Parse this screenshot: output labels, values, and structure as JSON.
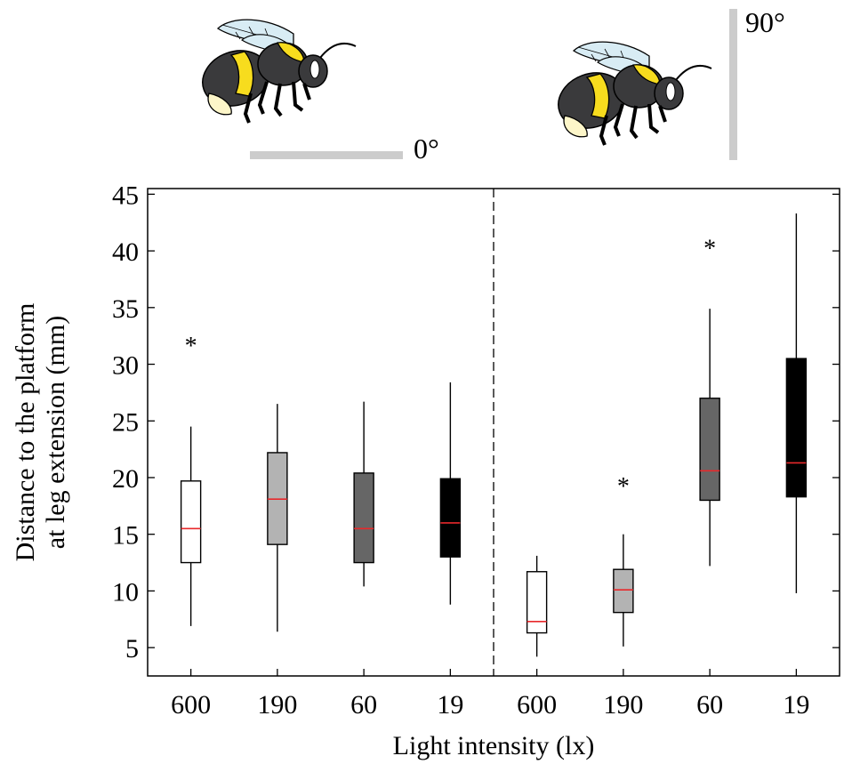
{
  "chart_data": {
    "type": "box",
    "xlabel": "Light intensity (lx)",
    "ylabel_line1": "Distance to the platform",
    "ylabel_line2": "at leg extension (mm)",
    "ylim": [
      2.5,
      45.5
    ],
    "yticks": [
      5,
      10,
      15,
      20,
      25,
      30,
      35,
      40,
      45
    ],
    "groups": [
      {
        "angle_label": "0°",
        "boxes": [
          {
            "category": "600",
            "whisker_low": 6.9,
            "q1": 12.5,
            "median": 15.5,
            "q3": 19.7,
            "whisker_high": 24.5,
            "outliers": [
              32.0
            ],
            "fill": "#ffffff"
          },
          {
            "category": "190",
            "whisker_low": 6.4,
            "q1": 14.1,
            "median": 18.1,
            "q3": 22.2,
            "whisker_high": 26.5,
            "outliers": [],
            "fill": "#b3b3b3"
          },
          {
            "category": "60",
            "whisker_low": 10.4,
            "q1": 12.5,
            "median": 15.5,
            "q3": 20.4,
            "whisker_high": 26.7,
            "outliers": [],
            "fill": "#666666"
          },
          {
            "category": "19",
            "whisker_low": 8.8,
            "q1": 13.0,
            "median": 16.0,
            "q3": 19.9,
            "whisker_high": 28.4,
            "outliers": [],
            "fill": "#000000"
          }
        ]
      },
      {
        "angle_label": "90°",
        "boxes": [
          {
            "category": "600",
            "whisker_low": 4.2,
            "q1": 6.3,
            "median": 7.3,
            "q3": 11.7,
            "whisker_high": 13.1,
            "outliers": [],
            "fill": "#ffffff"
          },
          {
            "category": "190",
            "whisker_low": 5.1,
            "q1": 8.1,
            "median": 10.1,
            "q3": 11.9,
            "whisker_high": 15.0,
            "outliers": [
              19.6
            ],
            "fill": "#b3b3b3"
          },
          {
            "category": "60",
            "whisker_low": 12.2,
            "q1": 18.0,
            "median": 20.6,
            "q3": 27.0,
            "whisker_high": 34.9,
            "outliers": [
              40.6
            ],
            "fill": "#666666"
          },
          {
            "category": "19",
            "whisker_low": 9.8,
            "q1": 18.3,
            "median": 21.3,
            "q3": 30.5,
            "whisker_high": 43.3,
            "outliers": [],
            "fill": "#000000"
          }
        ]
      }
    ],
    "outlier_marker": "*",
    "median_color": "#e8282b",
    "divider": "dashed vertical line between groups"
  }
}
